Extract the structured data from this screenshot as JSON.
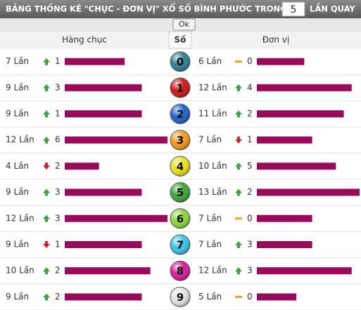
{
  "header": {
    "title": "BẢNG THỐNG KÊ \"CHỤC - ĐƠN VỊ\" XỔ SỐ BÌNH PHƯỚC TRONG",
    "draws": "5",
    "suffix": "LẦN QUAY",
    "button": "Ok"
  },
  "columns": {
    "tens": "Hàng chục",
    "number": "Số",
    "units": "Đơn vị"
  },
  "bar_color": "#990a5c",
  "rows": [
    {
      "number": "0",
      "ball_color": "#2f7f96",
      "tens": {
        "count": 7,
        "count_label": "7 Lần",
        "trend": "up",
        "change": 1
      },
      "units": {
        "count": 6,
        "count_label": "6 Lần",
        "trend": "flat",
        "change": 0
      }
    },
    {
      "number": "1",
      "ball_color": "#d01818",
      "tens": {
        "count": 9,
        "count_label": "9 Lần",
        "trend": "up",
        "change": 3
      },
      "units": {
        "count": 12,
        "count_label": "12 Lần",
        "trend": "up",
        "change": 4
      }
    },
    {
      "number": "2",
      "ball_color": "#1f63c8",
      "tens": {
        "count": 9,
        "count_label": "9 Lần",
        "trend": "up",
        "change": 1
      },
      "units": {
        "count": 11,
        "count_label": "11 Lần",
        "trend": "up",
        "change": 2
      }
    },
    {
      "number": "3",
      "ball_color": "#f29a1a",
      "tens": {
        "count": 12,
        "count_label": "12 Lần",
        "trend": "up",
        "change": 6
      },
      "units": {
        "count": 7,
        "count_label": "7 Lần",
        "trend": "down",
        "change": 1
      }
    },
    {
      "number": "4",
      "ball_color": "#e8e21a",
      "tens": {
        "count": 4,
        "count_label": "4 Lần",
        "trend": "down",
        "change": 2
      },
      "units": {
        "count": 10,
        "count_label": "10 Lần",
        "trend": "up",
        "change": 5
      }
    },
    {
      "number": "5",
      "ball_color": "#3aa63a",
      "tens": {
        "count": 9,
        "count_label": "9 Lần",
        "trend": "up",
        "change": 3
      },
      "units": {
        "count": 13,
        "count_label": "13 Lần",
        "trend": "up",
        "change": 2
      }
    },
    {
      "number": "6",
      "ball_color": "#8cd63a",
      "tens": {
        "count": 12,
        "count_label": "12 Lần",
        "trend": "up",
        "change": 3
      },
      "units": {
        "count": 7,
        "count_label": "7 Lần",
        "trend": "flat",
        "change": 0
      }
    },
    {
      "number": "7",
      "ball_color": "#38c4e8",
      "tens": {
        "count": 9,
        "count_label": "9 Lần",
        "trend": "down",
        "change": 1
      },
      "units": {
        "count": 7,
        "count_label": "7 Lần",
        "trend": "up",
        "change": 3
      }
    },
    {
      "number": "8",
      "ball_color": "#d81c9c",
      "tens": {
        "count": 10,
        "count_label": "10 Lần",
        "trend": "up",
        "change": 2
      },
      "units": {
        "count": 12,
        "count_label": "12 Lần",
        "trend": "up",
        "change": 3
      }
    },
    {
      "number": "9",
      "ball_color": "#e4e4e4",
      "tens": {
        "count": 9,
        "count_label": "9 Lần",
        "trend": "up",
        "change": 2
      },
      "units": {
        "count": 5,
        "count_label": "5 Lần",
        "trend": "flat",
        "change": 0
      }
    }
  ]
}
